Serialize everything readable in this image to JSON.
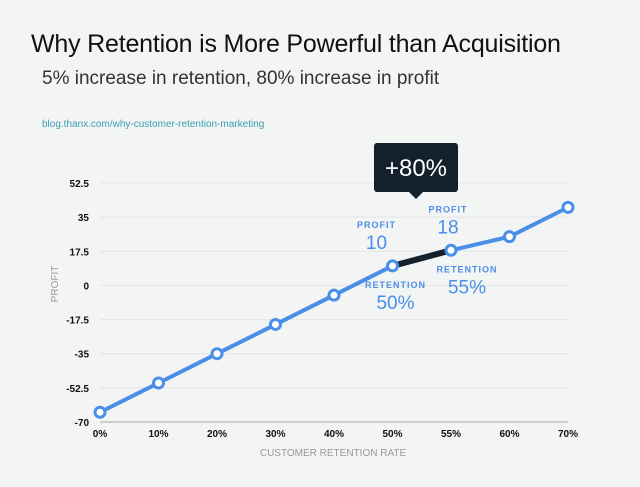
{
  "header": {
    "title": "Why Retention is More Powerful than Acquisition",
    "subtitle": "5% increase in retention, 80% increase in profit",
    "source": "blog.thanx.com/why-customer-retention-marketing"
  },
  "colors": {
    "line": "#4a8fe7",
    "highlight_segment": "#14202e",
    "callout_bg": "#14202e",
    "background": "#f3f4f4",
    "gridline": "#e2e4e6"
  },
  "chart_data": {
    "type": "line",
    "title": "Why Retention is More Powerful than Acquisition",
    "subtitle": "5% increase in retention, 80% increase in profit",
    "xlabel": "CUSTOMER RETENTION RATE",
    "ylabel": "PROFIT",
    "categories": [
      "0%",
      "10%",
      "20%",
      "30%",
      "40%",
      "50%",
      "55%",
      "60%",
      "70%"
    ],
    "y_ticks": [
      "52.5",
      "35",
      "17.5",
      "0",
      "-17.5",
      "-35",
      "-52.5",
      "-70"
    ],
    "y_tick_values": [
      52.5,
      35,
      17.5,
      0,
      -17.5,
      -35,
      -52.5,
      -70
    ],
    "ylim": [
      -70,
      52.5
    ],
    "grid": true,
    "series": [
      {
        "name": "Profit",
        "values": [
          -65,
          -50,
          -35,
          -20,
          -5,
          10,
          18,
          25,
          40
        ]
      }
    ],
    "highlight": {
      "from_category": "50%",
      "to_category": "55%"
    },
    "callout": "+80%",
    "annotations": [
      {
        "label": "PROFIT",
        "value": "10",
        "category": "50%",
        "position": "above-left"
      },
      {
        "label": "RETENTION",
        "value": "50%",
        "category": "50%",
        "position": "below"
      },
      {
        "label": "PROFIT",
        "value": "18",
        "category": "55%",
        "position": "above"
      },
      {
        "label": "RETENTION",
        "value": "55%",
        "category": "55%",
        "position": "below"
      }
    ]
  }
}
